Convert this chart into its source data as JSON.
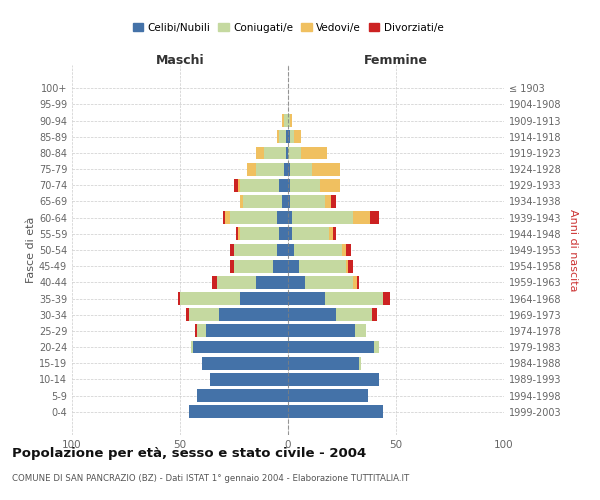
{
  "age_groups": [
    "0-4",
    "5-9",
    "10-14",
    "15-19",
    "20-24",
    "25-29",
    "30-34",
    "35-39",
    "40-44",
    "45-49",
    "50-54",
    "55-59",
    "60-64",
    "65-69",
    "70-74",
    "75-79",
    "80-84",
    "85-89",
    "90-94",
    "95-99",
    "100+"
  ],
  "birth_years": [
    "1999-2003",
    "1994-1998",
    "1989-1993",
    "1984-1988",
    "1979-1983",
    "1974-1978",
    "1969-1973",
    "1964-1968",
    "1959-1963",
    "1954-1958",
    "1949-1953",
    "1944-1948",
    "1939-1943",
    "1934-1938",
    "1929-1933",
    "1924-1928",
    "1919-1923",
    "1914-1918",
    "1909-1913",
    "1904-1908",
    "≤ 1903"
  ],
  "maschi": {
    "celibi": [
      46,
      42,
      36,
      40,
      44,
      38,
      32,
      22,
      15,
      7,
      5,
      4,
      5,
      3,
      4,
      2,
      1,
      1,
      0,
      0,
      0
    ],
    "coniugati": [
      0,
      0,
      0,
      0,
      1,
      4,
      14,
      28,
      18,
      18,
      20,
      18,
      22,
      18,
      18,
      13,
      10,
      3,
      2,
      0,
      0
    ],
    "vedovi": [
      0,
      0,
      0,
      0,
      0,
      0,
      0,
      0,
      0,
      0,
      0,
      1,
      2,
      1,
      1,
      4,
      4,
      1,
      1,
      0,
      0
    ],
    "divorziati": [
      0,
      0,
      0,
      0,
      0,
      1,
      1,
      1,
      2,
      2,
      2,
      1,
      1,
      0,
      2,
      0,
      0,
      0,
      0,
      0,
      0
    ]
  },
  "femmine": {
    "nubili": [
      44,
      37,
      42,
      33,
      40,
      31,
      22,
      17,
      8,
      5,
      3,
      2,
      2,
      1,
      1,
      1,
      0,
      1,
      0,
      0,
      0
    ],
    "coniugate": [
      0,
      0,
      0,
      1,
      2,
      5,
      17,
      27,
      22,
      22,
      22,
      17,
      28,
      16,
      14,
      10,
      6,
      2,
      1,
      0,
      0
    ],
    "vedove": [
      0,
      0,
      0,
      0,
      0,
      0,
      0,
      0,
      2,
      1,
      2,
      2,
      8,
      3,
      9,
      13,
      12,
      3,
      1,
      0,
      0
    ],
    "divorziate": [
      0,
      0,
      0,
      0,
      0,
      0,
      2,
      3,
      1,
      2,
      2,
      1,
      4,
      2,
      0,
      0,
      0,
      0,
      0,
      0,
      0
    ]
  },
  "colors": {
    "celibi": "#4472a8",
    "coniugati": "#c5d9a0",
    "vedovi": "#f0c060",
    "divorziati": "#cc2222"
  },
  "title": "Popolazione per età, sesso e stato civile - 2004",
  "subtitle": "COMUNE DI SAN PANCRAZIO (BZ) - Dati ISTAT 1° gennaio 2004 - Elaborazione TUTTITALIA.IT",
  "xlabel_left": "Maschi",
  "xlabel_right": "Femmine",
  "ylabel_left": "Fasce di età",
  "ylabel_right": "Anni di nascita",
  "xlim": 100,
  "legend_labels": [
    "Celibi/Nubili",
    "Coniugati/e",
    "Vedovi/e",
    "Divorziati/e"
  ],
  "background_color": "#ffffff"
}
